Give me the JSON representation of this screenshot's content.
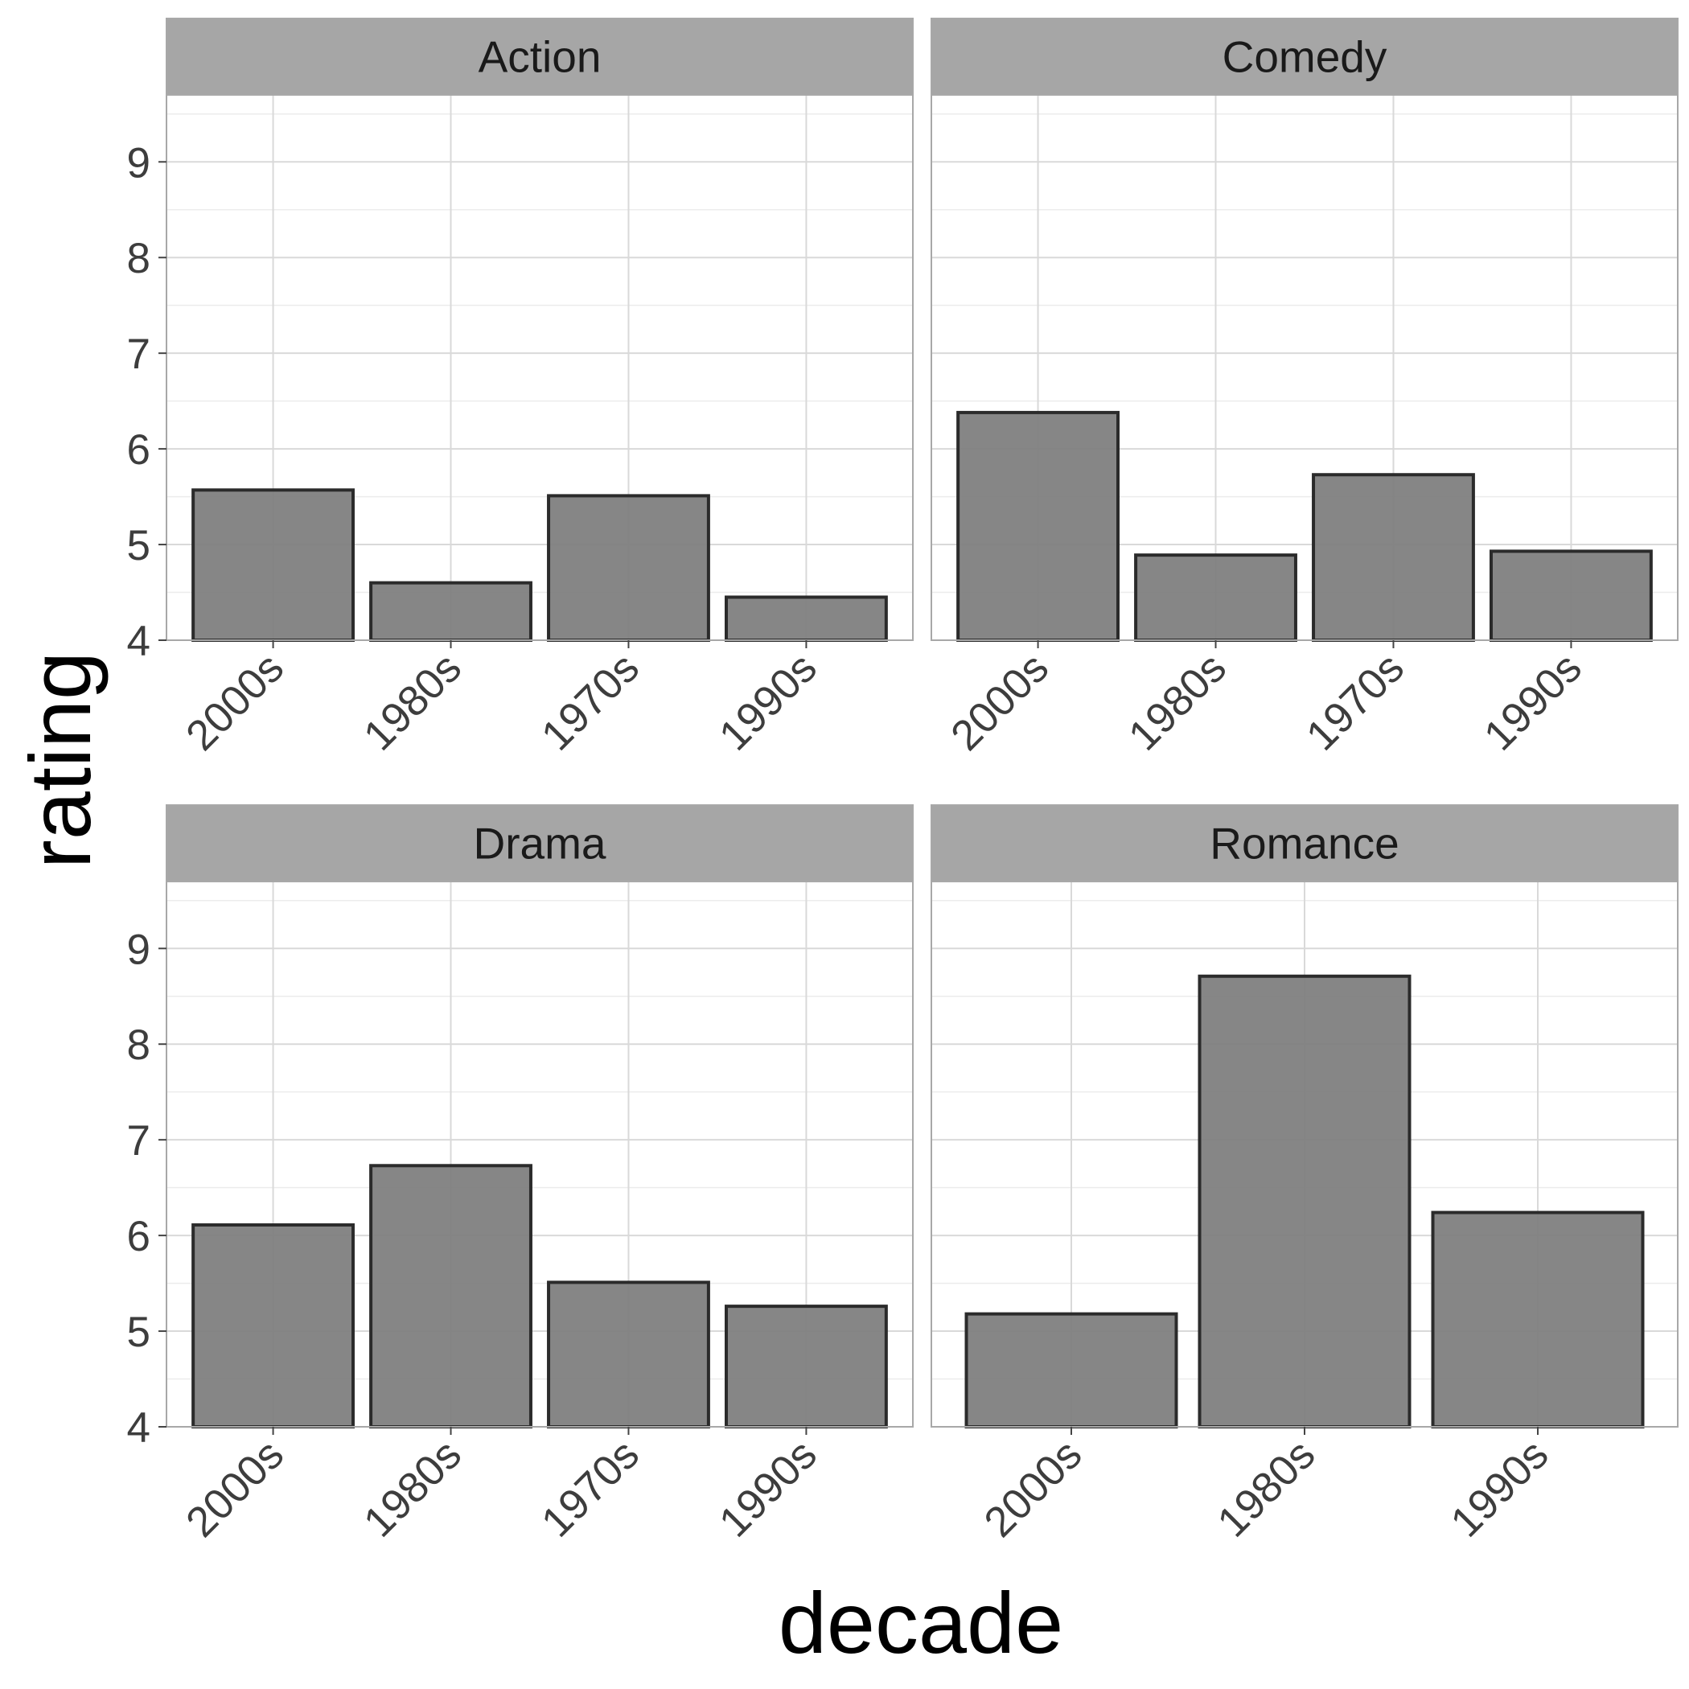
{
  "chart_data": {
    "type": "bar",
    "xlabel": "decade",
    "ylabel": "rating",
    "ylim": [
      4,
      9.7
    ],
    "yticks": [
      4,
      5,
      6,
      7,
      8,
      9
    ],
    "facets": [
      {
        "title": "Action",
        "categories": [
          "2000s",
          "1980s",
          "1970s",
          "1990s"
        ],
        "values": [
          5.57,
          4.6,
          5.51,
          4.45
        ]
      },
      {
        "title": "Comedy",
        "categories": [
          "2000s",
          "1980s",
          "1970s",
          "1990s"
        ],
        "values": [
          6.38,
          4.89,
          5.73,
          4.93
        ]
      },
      {
        "title": "Drama",
        "categories": [
          "2000s",
          "1980s",
          "1970s",
          "1990s"
        ],
        "values": [
          6.11,
          6.73,
          5.51,
          5.26
        ]
      },
      {
        "title": "Romance",
        "categories": [
          "2000s",
          "1980s",
          "1990s"
        ],
        "values": [
          5.18,
          8.71,
          6.24
        ]
      }
    ],
    "colors": {
      "bar_fill": "#7f7f7f",
      "bar_stroke": "#2b2b2b",
      "strip_fill": "#a6a6a6",
      "grid_major": "#d9d9d9",
      "grid_minor": "#ececec",
      "panel_border": "#a8a8a8"
    },
    "grid": true,
    "legend": "none"
  }
}
